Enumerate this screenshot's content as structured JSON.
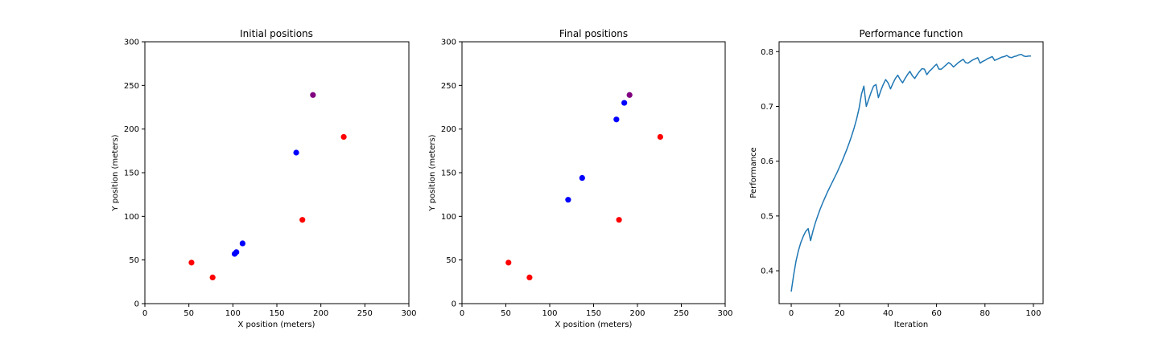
{
  "chart_data": [
    {
      "type": "scatter",
      "title": "Initial positions",
      "xlabel": "X position (meters)",
      "ylabel": "Y position (meters)",
      "xlim": [
        0,
        300
      ],
      "ylim": [
        0,
        300
      ],
      "xticks": [
        0,
        50,
        100,
        150,
        200,
        250,
        300
      ],
      "yticks": [
        0,
        50,
        100,
        150,
        200,
        250,
        300
      ],
      "grid": false,
      "series": [
        {
          "color": "#ff0000",
          "points": [
            [
              53,
              47
            ],
            [
              77,
              30
            ],
            [
              179,
              96
            ],
            [
              226,
              191
            ]
          ]
        },
        {
          "color": "#0000ff",
          "points": [
            [
              102,
              57
            ],
            [
              104,
              59
            ],
            [
              111,
              69
            ],
            [
              172,
              173
            ]
          ]
        },
        {
          "color": "#800080",
          "points": [
            [
              191,
              239
            ]
          ]
        }
      ]
    },
    {
      "type": "scatter",
      "title": "Final positions",
      "xlabel": "X position (meters)",
      "ylabel": "Y position (meters)",
      "xlim": [
        0,
        300
      ],
      "ylim": [
        0,
        300
      ],
      "xticks": [
        0,
        50,
        100,
        150,
        200,
        250,
        300
      ],
      "yticks": [
        0,
        50,
        100,
        150,
        200,
        250,
        300
      ],
      "grid": false,
      "series": [
        {
          "color": "#ff0000",
          "points": [
            [
              53,
              47
            ],
            [
              77,
              30
            ],
            [
              179,
              96
            ],
            [
              226,
              191
            ]
          ]
        },
        {
          "color": "#0000ff",
          "points": [
            [
              121,
              119
            ],
            [
              137,
              144
            ],
            [
              176,
              211
            ],
            [
              185,
              230
            ]
          ]
        },
        {
          "color": "#800080",
          "points": [
            [
              191,
              239
            ]
          ]
        }
      ]
    },
    {
      "type": "line",
      "title": "Performance function",
      "xlabel": "Iteration",
      "ylabel": "Performance",
      "xlim": [
        -5,
        104
      ],
      "ylim": [
        0.34,
        0.818
      ],
      "xticks": [
        0,
        20,
        40,
        60,
        80,
        100
      ],
      "yticks": [
        0.4,
        0.5,
        0.6,
        0.7,
        0.8
      ],
      "grid": false,
      "series": [
        {
          "color": "#1f77b4",
          "x": [
            0,
            1,
            2,
            3,
            4,
            5,
            6,
            7,
            8,
            9,
            10,
            11,
            12,
            13,
            14,
            15,
            16,
            17,
            18,
            19,
            20,
            21,
            22,
            23,
            24,
            25,
            26,
            27,
            28,
            29,
            30,
            31,
            32,
            33,
            34,
            35,
            36,
            37,
            38,
            39,
            40,
            41,
            42,
            43,
            44,
            45,
            46,
            47,
            48,
            49,
            50,
            51,
            52,
            53,
            54,
            55,
            56,
            57,
            58,
            59,
            60,
            61,
            62,
            63,
            64,
            65,
            66,
            67,
            68,
            69,
            70,
            71,
            72,
            73,
            74,
            75,
            76,
            77,
            78,
            79,
            80,
            81,
            82,
            83,
            84,
            85,
            86,
            87,
            88,
            89,
            90,
            91,
            92,
            93,
            94,
            95,
            96,
            97,
            98,
            99
          ],
          "y": [
            0.362,
            0.392,
            0.418,
            0.437,
            0.452,
            0.463,
            0.472,
            0.477,
            0.455,
            0.473,
            0.488,
            0.501,
            0.513,
            0.524,
            0.534,
            0.544,
            0.553,
            0.562,
            0.571,
            0.58,
            0.59,
            0.6,
            0.611,
            0.622,
            0.634,
            0.647,
            0.661,
            0.677,
            0.696,
            0.722,
            0.737,
            0.7,
            0.713,
            0.726,
            0.737,
            0.74,
            0.716,
            0.729,
            0.74,
            0.749,
            0.743,
            0.732,
            0.742,
            0.751,
            0.757,
            0.749,
            0.743,
            0.751,
            0.758,
            0.764,
            0.756,
            0.751,
            0.758,
            0.764,
            0.769,
            0.768,
            0.758,
            0.764,
            0.768,
            0.773,
            0.777,
            0.768,
            0.768,
            0.772,
            0.776,
            0.78,
            0.777,
            0.772,
            0.776,
            0.78,
            0.783,
            0.786,
            0.78,
            0.779,
            0.782,
            0.785,
            0.787,
            0.789,
            0.779,
            0.782,
            0.784,
            0.787,
            0.789,
            0.791,
            0.784,
            0.786,
            0.788,
            0.79,
            0.791,
            0.793,
            0.79,
            0.789,
            0.791,
            0.792,
            0.794,
            0.795,
            0.792,
            0.791,
            0.792,
            0.792
          ]
        }
      ]
    }
  ]
}
